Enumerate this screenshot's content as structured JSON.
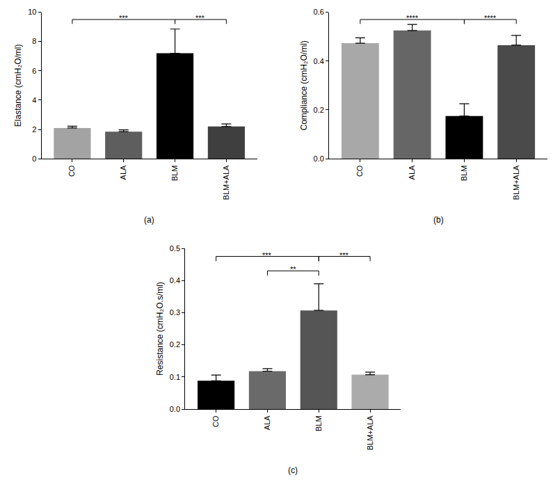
{
  "chart_data": [
    {
      "type": "bar",
      "title": "(a)",
      "ylabel": "Elastance (cmH₂O/ml)",
      "categories": [
        "CO",
        "ALA",
        "BLM",
        "BLM+ALA"
      ],
      "values": [
        2.1,
        1.85,
        7.2,
        2.2
      ],
      "error": [
        0.12,
        0.12,
        1.65,
        0.18
      ],
      "colors": [
        "#a3a3a3",
        "#5e5e5e",
        "#000000",
        "#3f3f3f"
      ],
      "ylim": [
        0,
        10
      ],
      "yticks": [
        0,
        2,
        4,
        6,
        8,
        10
      ],
      "annotations": [
        {
          "text": "***",
          "from": "CO",
          "to": "BLM"
        },
        {
          "text": "***",
          "from": "BLM",
          "to": "BLM+ALA"
        }
      ]
    },
    {
      "type": "bar",
      "title": "(b)",
      "ylabel": "Compliance (cmH₂O/ml)",
      "categories": [
        "CO",
        "ALA",
        "BLM",
        "BLM+ALA"
      ],
      "values": [
        0.473,
        0.525,
        0.175,
        0.465
      ],
      "error": [
        0.022,
        0.025,
        0.05,
        0.04
      ],
      "colors": [
        "#a8a8a8",
        "#666666",
        "#000000",
        "#4a4a4a"
      ],
      "ylim": [
        0,
        0.6
      ],
      "yticks": [
        {
          "value": 0,
          "label": "0.0"
        },
        0.2,
        0.4,
        0.6
      ],
      "annotations": [
        {
          "text": "****",
          "from": "CO",
          "to": "BLM"
        },
        {
          "text": "****",
          "from": "BLM",
          "to": "BLM+ALA"
        }
      ]
    },
    {
      "type": "bar",
      "title": "(c)",
      "ylabel": "Resistance (cmH₂O.s/ml)",
      "categories": [
        "CO",
        "ALA",
        "BLM",
        "BLM+ALA"
      ],
      "values": [
        0.088,
        0.118,
        0.307,
        0.107
      ],
      "error": [
        0.018,
        0.008,
        0.083,
        0.008
      ],
      "colors": [
        "#000000",
        "#6a6a6a",
        "#555555",
        "#ababab"
      ],
      "ylim": [
        0,
        0.5
      ],
      "yticks": [
        {
          "value": 0,
          "label": "0.0"
        },
        0.1,
        0.2,
        0.3,
        0.4,
        0.5
      ],
      "annotations": [
        {
          "text": "***",
          "from": "CO",
          "to": "BLM"
        },
        {
          "text": "**",
          "from": "ALA",
          "to": "BLM"
        },
        {
          "text": "***",
          "from": "BLM",
          "to": "BLM+ALA"
        }
      ]
    }
  ]
}
